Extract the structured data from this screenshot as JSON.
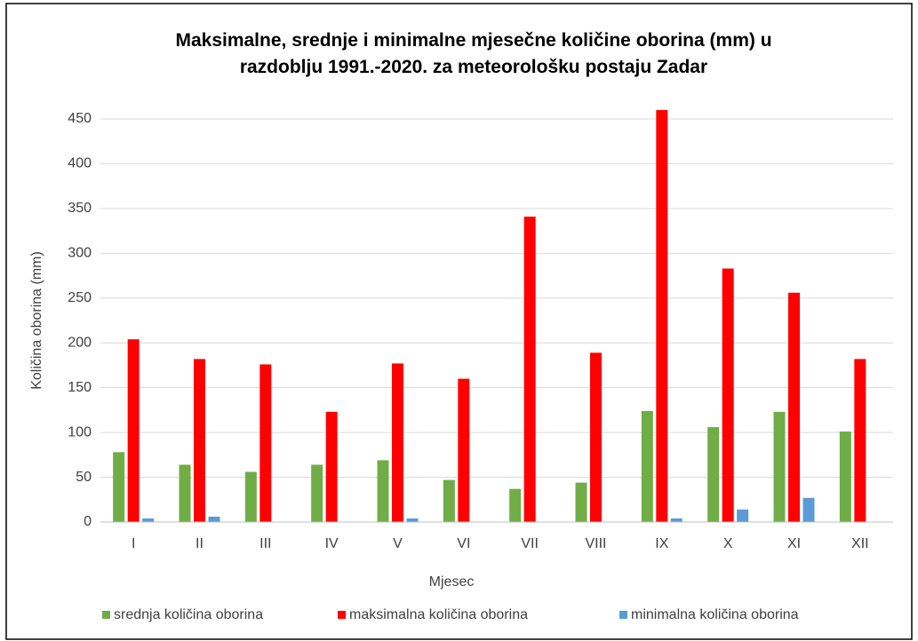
{
  "chart_data": {
    "type": "bar",
    "title": "Maksimalne, srednje i minimalne mjesečne količine oborina (mm) u razdoblju 1991.-2020. za meteorološku postaju Zadar",
    "xlabel": "Mjesec",
    "ylabel": "Količina oborina (mm)",
    "categories": [
      "I",
      "II",
      "III",
      "IV",
      "V",
      "VI",
      "VII",
      "VIII",
      "IX",
      "X",
      "XI",
      "XII"
    ],
    "series": [
      {
        "name": "srednja količina oborina",
        "color": "#70ad47",
        "values": [
          78,
          64,
          56,
          64,
          69,
          47,
          37,
          44,
          124,
          106,
          123,
          101
        ]
      },
      {
        "name": "maksimalna količina oborina",
        "color": "#ff0000",
        "values": [
          204,
          182,
          176,
          123,
          177,
          160,
          341,
          189,
          460,
          283,
          256,
          182
        ]
      },
      {
        "name": "minimalna količina oborina",
        "color": "#5b9bd5",
        "values": [
          4,
          6,
          0,
          0,
          4,
          0,
          0,
          0,
          4,
          14,
          27,
          0
        ]
      }
    ],
    "ylim": [
      0,
      450
    ],
    "yticks": [
      0,
      50,
      100,
      150,
      200,
      250,
      300,
      350,
      400,
      450
    ],
    "grid": true,
    "legend": "bottom"
  }
}
